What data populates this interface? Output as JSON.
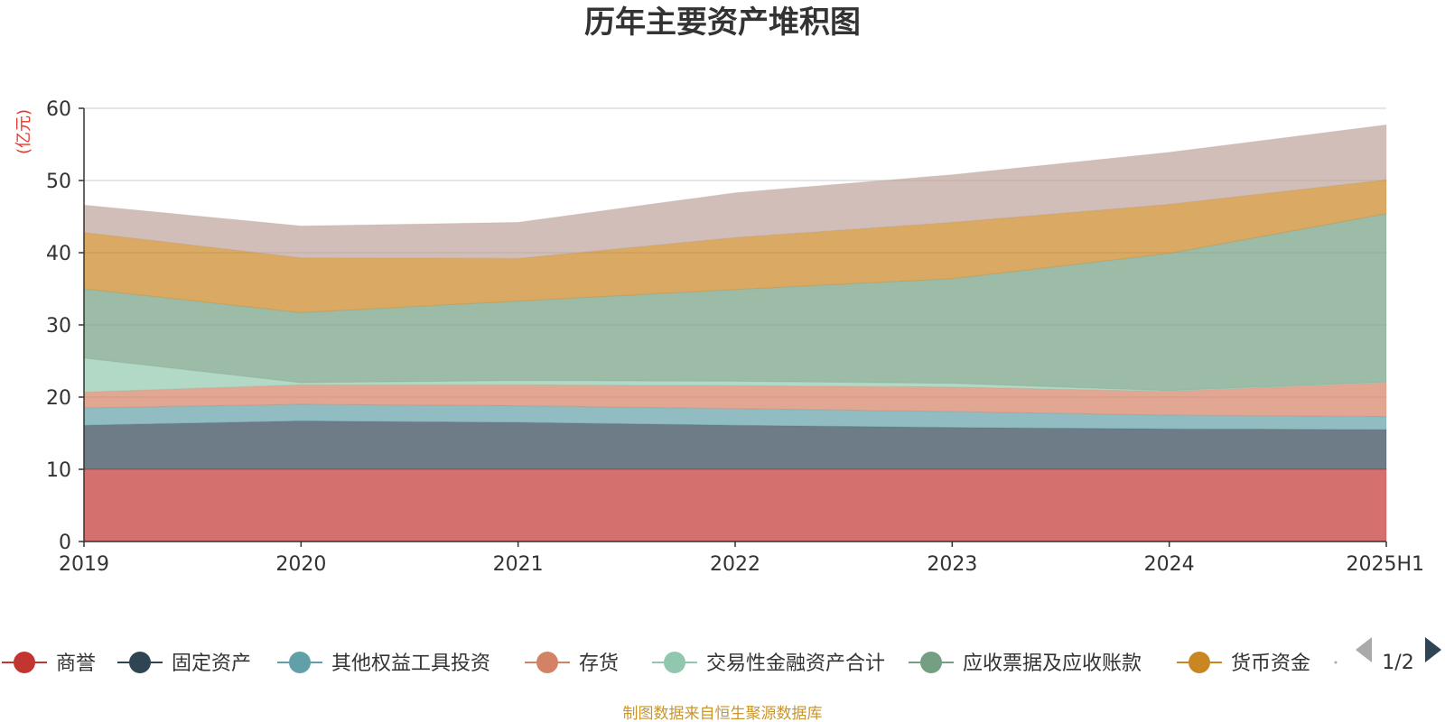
{
  "chart_data": {
    "type": "area",
    "stacked": true,
    "title": "历年主要资产堆积图",
    "unit_label": "(亿元)",
    "categories": [
      "2019",
      "2020",
      "2021",
      "2022",
      "2023",
      "2024",
      "2025H1"
    ],
    "ylim": [
      0,
      60
    ],
    "yticks": [
      0,
      10,
      20,
      30,
      40,
      50,
      60
    ],
    "grid": true,
    "series": [
      {
        "name": "商誉",
        "color": "#c23531",
        "values": [
          10.0,
          10.0,
          10.0,
          10.0,
          10.0,
          10.0,
          10.0
        ]
      },
      {
        "name": "固定资产",
        "color": "#2f4554",
        "values": [
          6.1,
          6.7,
          6.5,
          6.1,
          5.8,
          5.6,
          5.5
        ]
      },
      {
        "name": "其他权益工具投资",
        "color": "#61a0a8",
        "values": [
          2.4,
          2.3,
          2.3,
          2.3,
          2.2,
          1.9,
          1.8
        ]
      },
      {
        "name": "存货",
        "color": "#d48265",
        "values": [
          2.2,
          2.7,
          2.9,
          3.2,
          3.4,
          3.3,
          4.7
        ]
      },
      {
        "name": "交易性金融资产合计",
        "color": "#91c7ae",
        "values": [
          4.7,
          0.3,
          0.6,
          0.6,
          0.5,
          0.1,
          0.1
        ]
      },
      {
        "name": "应收票据及应收账款",
        "color": "#749f83",
        "values": [
          9.6,
          9.7,
          11.0,
          12.7,
          14.5,
          19.0,
          23.3
        ]
      },
      {
        "name": "货币资金",
        "color": "#ca8622",
        "values": [
          7.8,
          7.6,
          5.9,
          7.2,
          7.8,
          6.8,
          4.7
        ]
      },
      {
        "name": "",
        "color": "#bda29a",
        "values": [
          3.8,
          4.4,
          5.0,
          6.2,
          6.6,
          7.2,
          7.6
        ]
      }
    ],
    "legend_position": "bottom",
    "legend_page": "1/2"
  },
  "source_note": "制图数据来自恒生聚源数据库"
}
